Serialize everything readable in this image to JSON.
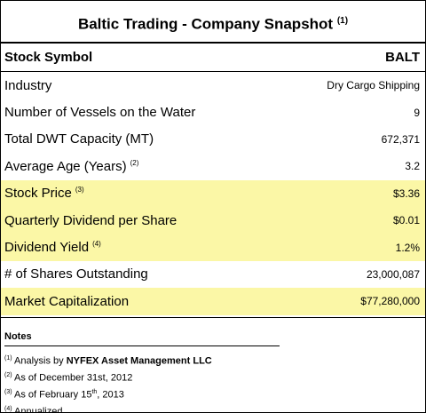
{
  "title": "Baltic Trading - Company Snapshot",
  "title_note": "(1)",
  "header": {
    "label": "Stock Symbol",
    "value": "BALT"
  },
  "rows": [
    {
      "label": "Industry",
      "value": "Dry Cargo Shipping",
      "highlight": false
    },
    {
      "label": "Number of Vessels on the Water",
      "value": "9",
      "highlight": false
    },
    {
      "label": "Total DWT Capacity (MT)",
      "value": "672,371",
      "highlight": false
    },
    {
      "label": "Average Age (Years)",
      "note": "(2)",
      "value": "3.2",
      "highlight": false
    },
    {
      "label": "Stock Price",
      "note": "(3)",
      "value": "$3.36",
      "highlight": true
    },
    {
      "label": "Quarterly Dividend per Share",
      "value": "$0.01",
      "highlight": true
    },
    {
      "label": "Dividend Yield",
      "note": "(4)",
      "value": "1.2%",
      "highlight": true
    },
    {
      "label": "# of Shares Outstanding",
      "value": "23,000,087",
      "highlight": false
    },
    {
      "label": "Market Capitalization",
      "value": "$77,280,000",
      "highlight": true
    }
  ],
  "notes": {
    "heading": "Notes",
    "items": [
      {
        "marker": "(1)",
        "text": "Analysis by ",
        "bold": "NYFEX Asset Management LLC"
      },
      {
        "marker": "(2)",
        "text": "As of December 31st, 2012"
      },
      {
        "marker": "(3)",
        "text": "As of February 15",
        "sup": "th",
        "text_after": ", 2013"
      },
      {
        "marker": "(4)",
        "text": "Annualized"
      }
    ]
  }
}
